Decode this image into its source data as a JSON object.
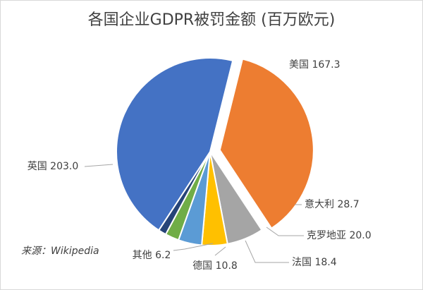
{
  "chart_data": {
    "type": "pie",
    "title": "各国企业GDPR被罚金额 (百万欧元)",
    "source": "来源：Wikipedia",
    "slices": [
      {
        "label": "美国",
        "value": 167.3,
        "color": "#ED7D31",
        "exploded": true
      },
      {
        "label": "意大利",
        "value": 28.7,
        "color": "#A5A5A5",
        "exploded": false
      },
      {
        "label": "克罗地亚",
        "value": 20.0,
        "color": "#FFC000",
        "exploded": false
      },
      {
        "label": "法国",
        "value": 18.4,
        "color": "#5B9BD5",
        "exploded": false
      },
      {
        "label": "德国",
        "value": 10.8,
        "color": "#70AD47",
        "exploded": false
      },
      {
        "label": "其他",
        "value": 6.2,
        "color": "#264478",
        "exploded": false
      },
      {
        "label": "英国",
        "value": 203.0,
        "color": "#4472C4",
        "exploded": false
      }
    ],
    "data_labels": [
      "美国 167.3",
      "意大利 28.7",
      "克罗地亚 20.0",
      "法国 18.4",
      "德国 10.8",
      "其他 6.2",
      "英国 203.0"
    ],
    "legend": "none"
  }
}
